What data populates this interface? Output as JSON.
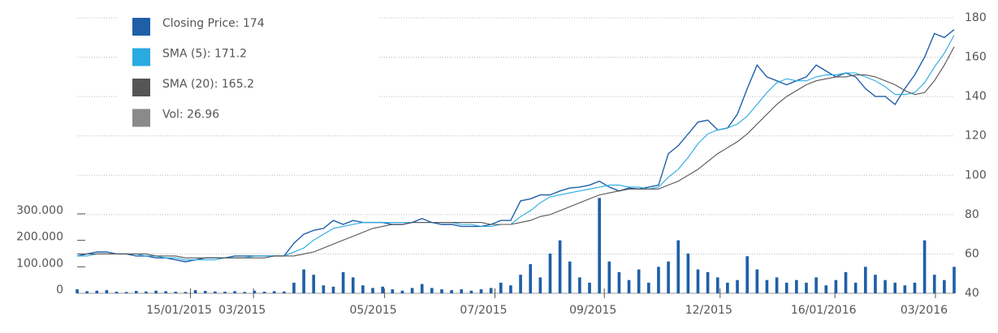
{
  "chart_data": {
    "type": "line",
    "categories": null,
    "xlim": [
      0,
      89
    ],
    "xticks": [
      {
        "value": 11.5,
        "label": "15/01/2015"
      },
      {
        "value": 17.9,
        "label": "03/2015"
      },
      {
        "value": 31.2,
        "label": "05/2015"
      },
      {
        "value": 42.4,
        "label": "07/2015"
      },
      {
        "value": 53.5,
        "label": "09/2015"
      },
      {
        "value": 65.25,
        "label": "12/2015"
      },
      {
        "value": 76.9,
        "label": "16/01/2016"
      },
      {
        "value": 87.1,
        "label": "03/2016"
      }
    ],
    "ylim": [
      0,
      1040000
    ],
    "yticks": [
      0,
      {
        "value": 100000,
        "label": "100.000"
      },
      {
        "value": 200000,
        "label": "200.000"
      },
      {
        "value": 300000,
        "label": "300.000"
      }
    ],
    "y2lim": [
      40,
      180
    ],
    "y2ticks": [
      40,
      60,
      80,
      100,
      120,
      140,
      160,
      180
    ],
    "grid": true,
    "legend": "top-left",
    "bar_color": "#1f5fa8",
    "series": [
      {
        "name": "Closing Price: 174",
        "color": "#1f5fa8",
        "axis": "y2",
        "values": [
          59,
          60,
          61,
          61,
          60,
          60,
          59,
          59,
          58,
          58,
          57,
          56,
          57,
          58,
          58,
          58,
          59,
          59,
          59,
          59,
          59,
          59,
          65.5,
          70,
          72,
          73,
          77,
          75,
          77,
          76,
          76,
          76,
          75,
          75,
          76,
          78,
          76,
          75,
          75,
          74,
          74,
          74,
          75,
          77,
          77,
          87,
          88,
          90,
          90,
          92,
          93.5,
          94,
          95,
          97,
          94,
          92,
          93.5,
          93,
          94,
          95,
          111,
          115,
          121,
          127,
          128,
          123,
          124,
          131,
          144,
          156,
          150,
          148,
          146,
          148,
          150,
          156,
          153,
          150,
          152,
          150,
          144,
          140,
          140,
          136,
          144,
          151,
          160,
          172,
          170,
          174
        ]
      },
      {
        "name": "SMA (5): 171.2",
        "color": "#29aae1",
        "axis": "y2",
        "values": [
          59,
          59,
          60,
          60,
          60,
          60,
          60,
          59,
          59,
          58,
          58,
          57,
          57,
          57,
          57,
          58,
          58,
          58,
          59,
          59,
          59,
          59,
          61,
          63,
          67,
          70,
          73,
          74,
          75,
          76,
          76,
          76,
          76,
          76,
          76,
          76,
          76,
          76,
          76,
          75,
          75,
          74,
          74,
          75,
          75,
          79,
          82,
          86,
          89,
          90,
          91,
          92,
          93,
          94,
          95,
          95,
          94,
          94,
          93,
          94,
          99,
          103,
          109,
          116,
          121,
          123,
          124,
          126,
          130,
          136,
          142,
          147,
          149,
          148,
          148,
          150,
          151,
          151,
          152,
          152,
          150,
          148,
          145,
          141,
          141,
          142,
          147,
          155,
          162,
          171.2
        ]
      },
      {
        "name": "SMA (20): 165.2",
        "color": "#555555",
        "axis": "y2",
        "values": [
          60,
          60,
          60,
          60,
          60,
          60,
          60,
          60,
          59,
          59,
          59,
          58,
          58,
          58,
          58,
          58,
          58,
          58,
          58,
          58,
          59,
          59,
          59,
          60,
          61,
          63,
          65,
          67,
          69,
          71,
          73,
          74,
          75,
          75,
          76,
          76,
          76,
          76,
          76,
          76,
          76,
          76,
          75,
          75,
          75,
          76,
          77,
          79,
          80,
          82,
          84,
          86,
          88,
          90,
          91,
          92,
          93,
          93,
          93,
          93,
          95,
          97,
          100,
          103,
          107,
          111,
          114,
          117,
          121,
          126,
          131,
          136,
          140,
          143,
          146,
          148,
          149,
          150,
          150,
          151,
          151,
          150,
          148,
          146,
          143,
          141,
          142,
          148,
          156,
          165.2
        ]
      },
      {
        "name": "Vol: 26.96",
        "color": "#8a8a8a",
        "axis": "y",
        "values": [
          15000,
          8000,
          10000,
          12000,
          6000,
          5000,
          9000,
          7000,
          10000,
          8000,
          6000,
          5000,
          12000,
          9000,
          7000,
          6000,
          8000,
          5000,
          10000,
          6000,
          8000,
          7000,
          40000,
          90000,
          70000,
          30000,
          25000,
          80000,
          60000,
          30000,
          20000,
          25000,
          15000,
          10000,
          20000,
          35000,
          20000,
          15000,
          12000,
          15000,
          10000,
          15000,
          20000,
          40000,
          30000,
          70000,
          110000,
          60000,
          150000,
          200000,
          120000,
          60000,
          40000,
          360000,
          120000,
          80000,
          50000,
          90000,
          40000,
          100000,
          120000,
          200000,
          150000,
          90000,
          80000,
          60000,
          40000,
          50000,
          140000,
          90000,
          50000,
          60000,
          40000,
          50000,
          40000,
          60000,
          30000,
          50000,
          80000,
          40000,
          100000,
          70000,
          50000,
          40000,
          30000,
          40000,
          200000,
          70000,
          50000,
          100000
        ]
      }
    ]
  }
}
